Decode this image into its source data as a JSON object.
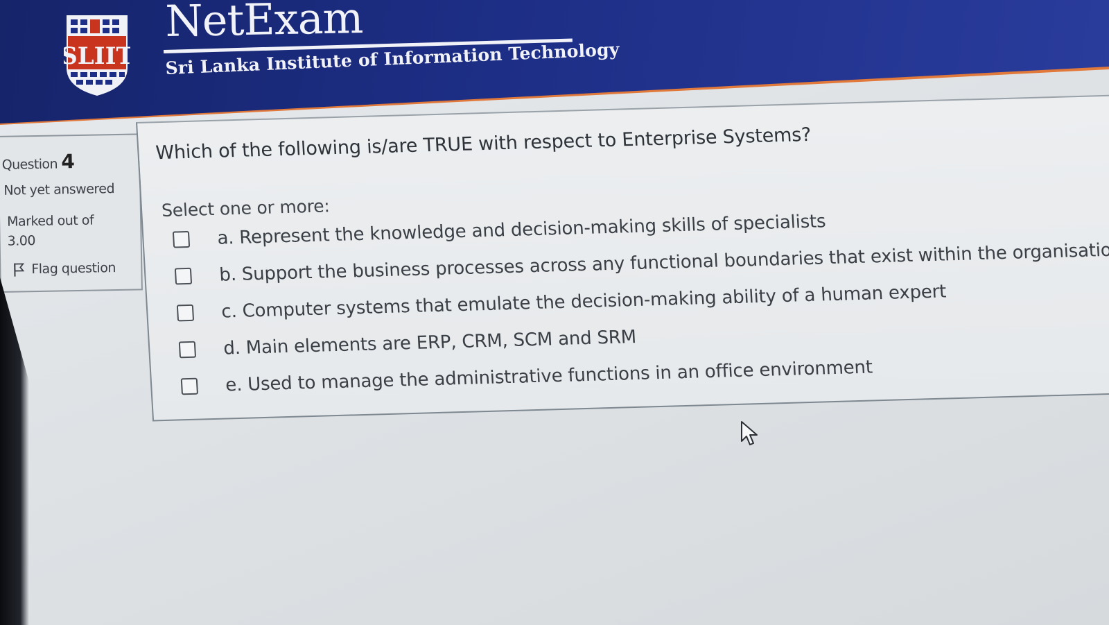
{
  "header": {
    "brand": "NetExam",
    "institute": "Sri Lanka Institute of Information Technology",
    "logo_text": "SLIIT",
    "colors": {
      "header": "#1d2e86",
      "stripe": "#e1793a"
    }
  },
  "question_info": {
    "label": "Question",
    "number": "4",
    "state": "Not yet answered",
    "marked_label": "Marked out of",
    "marks": "3.00",
    "flag_label": "Flag question"
  },
  "question": {
    "text": "Which of the following is/are TRUE with respect to Enterprise Systems?",
    "prompt": "Select one or more:",
    "options": [
      {
        "label": "a. Represent the knowledge and decision-making skills of specialists",
        "checked": false
      },
      {
        "label": "b. Support the business processes across any functional boundaries that exist within the organisatio",
        "checked": false
      },
      {
        "label": "c. Computer systems that emulate the decision-making ability of a human expert",
        "checked": false
      },
      {
        "label": "d. Main elements are ERP, CRM, SCM and SRM",
        "checked": false
      },
      {
        "label": "e. Used to manage the administrative functions in an office environment",
        "checked": false
      }
    ]
  }
}
